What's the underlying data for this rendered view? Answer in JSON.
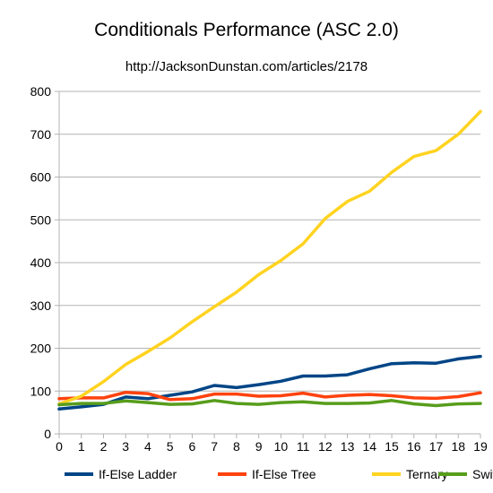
{
  "chart_data": {
    "type": "line",
    "title": "Conditionals Performance (ASC 2.0)",
    "subtitle": "http://JacksonDunstan.com/articles/2178",
    "xlabel": "",
    "ylabel": "",
    "x": [
      0,
      1,
      2,
      3,
      4,
      5,
      6,
      7,
      8,
      9,
      10,
      11,
      12,
      13,
      14,
      15,
      16,
      17,
      18,
      19
    ],
    "xlim": [
      0,
      19
    ],
    "ylim": [
      0,
      800
    ],
    "yticks": [
      0,
      100,
      200,
      300,
      400,
      500,
      600,
      700,
      800
    ],
    "grid": "horizontal",
    "legend": "bottom",
    "series": [
      {
        "name": "If-Else Ladder",
        "color": "#004586",
        "values": [
          58,
          63,
          69,
          86,
          82,
          90,
          98,
          113,
          108,
          115,
          123,
          135,
          135,
          138,
          152,
          164,
          166,
          165,
          175,
          181
        ]
      },
      {
        "name": "If-Else Tree",
        "color": "#ff420e",
        "values": [
          82,
          84,
          84,
          97,
          94,
          80,
          82,
          93,
          93,
          88,
          89,
          95,
          86,
          90,
          92,
          89,
          84,
          83,
          87,
          96
        ]
      },
      {
        "name": "Ternary",
        "color": "#ffd320",
        "values": [
          70,
          88,
          122,
          162,
          192,
          224,
          262,
          297,
          331,
          372,
          405,
          444,
          503,
          543,
          567,
          611,
          648,
          662,
          700,
          753
        ]
      },
      {
        "name": "Switch",
        "color": "#579d1c",
        "values": [
          68,
          71,
          71,
          77,
          73,
          69,
          70,
          78,
          71,
          69,
          73,
          75,
          71,
          71,
          72,
          78,
          70,
          66,
          70,
          71
        ]
      }
    ]
  }
}
